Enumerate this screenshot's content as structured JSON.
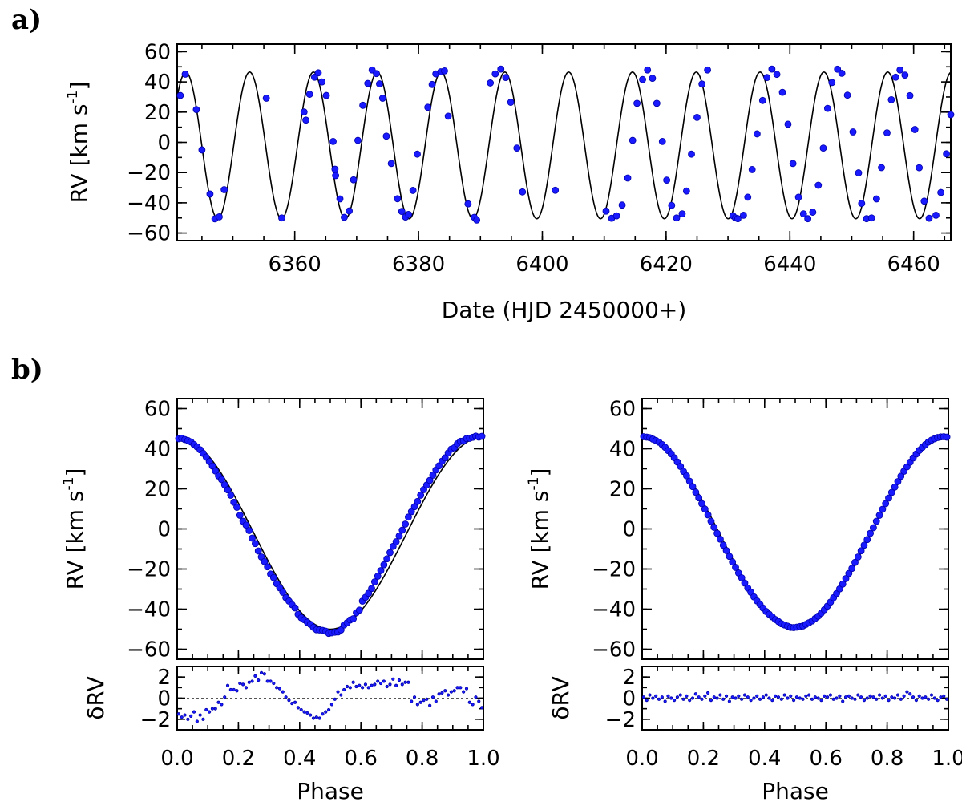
{
  "figure": {
    "panel_labels": [
      "a)",
      "b)"
    ],
    "point_color": "#1a1aff",
    "point_edge_color": "#0000aa",
    "model_color": "#000000"
  },
  "chart_data": [
    {
      "id": "a",
      "type": "scatter",
      "xlabel": "Date (HJD 2450000+)",
      "ylabel": "RV [km s-1]",
      "ylabel_parts": {
        "text": "RV [km s",
        "sup": "-1",
        "close": "]"
      },
      "xlim": [
        6341,
        6466
      ],
      "ylim": [
        -65,
        65
      ],
      "xticks": [
        6360,
        6380,
        6400,
        6420,
        6440,
        6460
      ],
      "yticks": [
        -60,
        -40,
        -20,
        0,
        20,
        40,
        60
      ],
      "model": {
        "type": "sinusoid",
        "period_days": 10.31,
        "amplitude": 48.5,
        "offset": -2.0,
        "t_peak": 6342.4
      },
      "x": [
        6341.5,
        6342.3,
        6344.1,
        6345.0,
        6346.3,
        6347.1,
        6347.8,
        6348.6,
        6355.4,
        6357.9,
        6361.5,
        6361.8,
        6362.4,
        6363.2,
        6363.8,
        6364.4,
        6365.1,
        6366.2,
        6366.5,
        6366.6,
        6367.3,
        6368.0,
        6368.8,
        6369.5,
        6370.2,
        6371.0,
        6371.8,
        6372.5,
        6373.2,
        6373.7,
        6374.2,
        6374.8,
        6375.6,
        6376.6,
        6377.3,
        6377.9,
        6378.4,
        6379.1,
        6379.8,
        6381.5,
        6382.2,
        6382.8,
        6383.6,
        6384.2,
        6384.8,
        6388.0,
        6389.0,
        6389.4,
        6391.6,
        6392.4,
        6393.3,
        6394.1,
        6394.9,
        6395.9,
        6396.8,
        6402.1,
        6410.3,
        6411.2,
        6412.0,
        6412.9,
        6413.8,
        6414.6,
        6415.3,
        6416.2,
        6417.0,
        6417.8,
        6418.5,
        6419.4,
        6420.1,
        6420.9,
        6421.7,
        6422.6,
        6423.3,
        6424.1,
        6425.0,
        6425.8,
        6426.7,
        6430.8,
        6431.2,
        6431.6,
        6432.5,
        6433.2,
        6433.9,
        6434.7,
        6435.6,
        6436.3,
        6437.1,
        6437.9,
        6438.8,
        6439.7,
        6440.5,
        6441.4,
        6442.2,
        6442.9,
        6443.7,
        6444.6,
        6445.4,
        6446.1,
        6446.8,
        6447.7,
        6448.4,
        6449.3,
        6450.2,
        6451.1,
        6451.6,
        6452.4,
        6453.2,
        6454.0,
        6454.8,
        6455.7,
        6456.4,
        6457.1,
        6457.8,
        6458.6,
        6459.4,
        6460.2,
        6460.9,
        6461.7,
        6462.5,
        6463.6,
        6464.4,
        6465.3,
        6466.0
      ],
      "y": [
        31.0,
        45.1,
        21.7,
        -5.0,
        -34.2,
        -50.6,
        -49.3,
        -31.3,
        29.2,
        -50.0,
        20.1,
        14.7,
        31.8,
        43.1,
        46.0,
        40.0,
        31.0,
        0.6,
        -17.8,
        -22.0,
        -37.4,
        -49.6,
        -45.4,
        -24.8,
        1.3,
        24.5,
        39.0,
        47.9,
        45.5,
        38.7,
        29.2,
        4.1,
        -14.0,
        -37.3,
        -45.7,
        -49.4,
        -47.7,
        -31.8,
        -7.8,
        23.2,
        38.3,
        45.3,
        46.7,
        47.3,
        17.3,
        -40.7,
        -49.6,
        -51.4,
        39.3,
        45.3,
        48.5,
        42.9,
        26.5,
        -3.8,
        -32.8,
        -31.7,
        -45.5,
        -50.2,
        -48.6,
        -41.5,
        -23.6,
        1.3,
        25.8,
        41.6,
        47.9,
        42.4,
        25.8,
        0.6,
        -25.0,
        -41.7,
        -50.0,
        -47.3,
        -32.2,
        -7.8,
        16.5,
        38.6,
        47.9,
        -48.6,
        -50.0,
        -50.5,
        -48.2,
        -36.3,
        -18.0,
        5.6,
        27.7,
        42.9,
        48.5,
        45.0,
        33.1,
        12.0,
        -14.0,
        -36.3,
        -47.3,
        -50.5,
        -46.2,
        -28.4,
        -3.8,
        22.5,
        39.6,
        48.4,
        45.7,
        31.2,
        6.9,
        -20.2,
        -40.4,
        -50.5,
        -50.0,
        -37.4,
        -16.7,
        6.3,
        28.2,
        43.1,
        47.9,
        44.5,
        30.9,
        8.5,
        -16.8,
        -38.9,
        -50.2,
        -48.2,
        -33.2,
        -7.6,
        18.3
      ]
    },
    {
      "id": "b-left",
      "type": "scatter",
      "xlabel": "Phase",
      "ylabel": "RV [km s-1]",
      "ylabel_parts": {
        "text": "RV [km s",
        "sup": "-1",
        "close": "]"
      },
      "xlim": [
        0.0,
        1.0
      ],
      "ylim": [
        -65,
        65
      ],
      "xticks": [
        0.0,
        0.2,
        0.4,
        0.6,
        0.8,
        1.0
      ],
      "xtick_labels": [
        "0.0",
        "0.2",
        "0.4",
        "0.6",
        "0.8",
        "1.0"
      ],
      "yticks": [
        -60,
        -40,
        -20,
        0,
        20,
        40,
        60
      ],
      "model": {
        "type": "cosine",
        "amplitude": 48.0,
        "offset": -2.0
      },
      "phase": [
        0.005,
        0.015,
        0.025,
        0.035,
        0.045,
        0.055,
        0.065,
        0.075,
        0.085,
        0.095,
        0.105,
        0.115,
        0.125,
        0.135,
        0.145,
        0.155,
        0.165,
        0.175,
        0.185,
        0.195,
        0.205,
        0.215,
        0.225,
        0.235,
        0.245,
        0.255,
        0.265,
        0.275,
        0.285,
        0.295,
        0.305,
        0.315,
        0.325,
        0.335,
        0.345,
        0.355,
        0.365,
        0.375,
        0.385,
        0.395,
        0.405,
        0.415,
        0.425,
        0.435,
        0.445,
        0.455,
        0.465,
        0.475,
        0.485,
        0.495,
        0.505,
        0.515,
        0.525,
        0.535,
        0.545,
        0.555,
        0.565,
        0.575,
        0.585,
        0.595,
        0.605,
        0.615,
        0.625,
        0.635,
        0.645,
        0.655,
        0.665,
        0.675,
        0.685,
        0.695,
        0.705,
        0.715,
        0.725,
        0.735,
        0.745,
        0.755,
        0.765,
        0.775,
        0.785,
        0.795,
        0.805,
        0.815,
        0.825,
        0.835,
        0.845,
        0.855,
        0.865,
        0.875,
        0.885,
        0.895,
        0.905,
        0.915,
        0.925,
        0.935,
        0.945,
        0.955,
        0.965,
        0.975,
        0.985,
        0.995
      ],
      "rv": [
        45.0,
        45.2,
        44.6,
        44.1,
        43.4,
        42.1,
        40.9,
        39.5,
        37.7,
        35.8,
        33.6,
        31.4,
        28.9,
        26.4,
        24.6,
        22.0,
        19.5,
        16.8,
        13.3,
        10.8,
        6.8,
        3.8,
        1.9,
        -0.8,
        -4.6,
        -7.3,
        -11.0,
        -14.0,
        -16.3,
        -18.9,
        -22.5,
        -24.3,
        -27.3,
        -29.4,
        -31.6,
        -34.3,
        -36.0,
        -37.8,
        -39.4,
        -42.6,
        -44.3,
        -45.3,
        -46.6,
        -47.6,
        -49.1,
        -50.3,
        -50.4,
        -50.6,
        -51.0,
        -52.1,
        -51.8,
        -51.5,
        -51.4,
        -50.4,
        -47.9,
        -46.8,
        -45.4,
        -44.8,
        -41.8,
        -40.5,
        -36.0,
        -34.1,
        -32.1,
        -29.7,
        -26.4,
        -23.6,
        -20.8,
        -17.9,
        -14.9,
        -11.8,
        -8.7,
        -6.4,
        -3.5,
        -0.6,
        2.4,
        5.9,
        8.6,
        11.1,
        13.7,
        16.8,
        19.6,
        21.9,
        24.2,
        26.8,
        29.4,
        31.5,
        33.8,
        35.5,
        37.9,
        39.8,
        40.5,
        42.5,
        43.7,
        43.9,
        45.1,
        45.2,
        45.7,
        46.3,
        45.8,
        46.2
      ],
      "residual_ylabel": "δRV",
      "residual_ylim": [
        -3,
        3
      ],
      "residual_yticks": [
        -2,
        0,
        2
      ],
      "residuals": [
        -1.5,
        -1.8,
        -1.6,
        -2.0,
        -1.7,
        -1.3,
        -2.2,
        -1.6,
        -2.0,
        -1.1,
        -1.3,
        -1.0,
        -1.0,
        -0.4,
        -0.6,
        0.1,
        1.2,
        0.8,
        0.8,
        0.7,
        1.4,
        1.3,
        1.0,
        1.5,
        1.6,
        2.1,
        1.7,
        2.4,
        2.3,
        1.6,
        1.6,
        1.4,
        1.0,
        0.9,
        0.6,
        0.1,
        -0.2,
        -0.5,
        -0.4,
        -0.9,
        -1.1,
        -1.3,
        -1.4,
        -1.6,
        -1.9,
        -1.8,
        -1.9,
        -1.5,
        -1.3,
        -1.1,
        -0.6,
        -0.1,
        0.6,
        0.3,
        0.8,
        1.1,
        1.0,
        1.5,
        1.1,
        1.2,
        1.0,
        1.3,
        1.0,
        1.2,
        1.3,
        1.6,
        1.4,
        1.6,
        1.1,
        1.3,
        1.8,
        1.2,
        1.7,
        1.3,
        1.5,
        1.5,
        -0.3,
        0.1,
        -0.6,
        -0.4,
        -0.2,
        -0.1,
        -0.7,
        0.1,
        -0.3,
        0.4,
        0.5,
        0.7,
        0.3,
        0.6,
        0.7,
        1.0,
        1.0,
        0.6,
        0.9,
        -0.4,
        -0.6,
        0.1,
        -0.3,
        -0.9
      ]
    },
    {
      "id": "b-right",
      "type": "scatter",
      "xlabel": "Phase",
      "ylabel": "RV [km s-1]",
      "ylabel_parts": {
        "text": "RV [km s",
        "sup": "-1",
        "close": "]"
      },
      "xlim": [
        0.0,
        1.0
      ],
      "ylim": [
        -65,
        65
      ],
      "xticks": [
        0.0,
        0.2,
        0.4,
        0.6,
        0.8,
        1.0
      ],
      "xtick_labels": [
        "0.0",
        "0.2",
        "0.4",
        "0.6",
        "0.8",
        "1.0"
      ],
      "yticks": [
        -60,
        -40,
        -20,
        0,
        20,
        40,
        60
      ],
      "model": {
        "type": "cosine",
        "amplitude": 47.5,
        "offset": -1.5
      },
      "phase": [
        0.005,
        0.015,
        0.025,
        0.035,
        0.045,
        0.055,
        0.065,
        0.075,
        0.085,
        0.095,
        0.105,
        0.115,
        0.125,
        0.135,
        0.145,
        0.155,
        0.165,
        0.175,
        0.185,
        0.195,
        0.205,
        0.215,
        0.225,
        0.235,
        0.245,
        0.255,
        0.265,
        0.275,
        0.285,
        0.295,
        0.305,
        0.315,
        0.325,
        0.335,
        0.345,
        0.355,
        0.365,
        0.375,
        0.385,
        0.395,
        0.405,
        0.415,
        0.425,
        0.435,
        0.445,
        0.455,
        0.465,
        0.475,
        0.485,
        0.495,
        0.505,
        0.515,
        0.525,
        0.535,
        0.545,
        0.555,
        0.565,
        0.575,
        0.585,
        0.595,
        0.605,
        0.615,
        0.625,
        0.635,
        0.645,
        0.655,
        0.665,
        0.675,
        0.685,
        0.695,
        0.705,
        0.715,
        0.725,
        0.735,
        0.745,
        0.755,
        0.765,
        0.775,
        0.785,
        0.795,
        0.805,
        0.815,
        0.825,
        0.835,
        0.845,
        0.855,
        0.865,
        0.875,
        0.885,
        0.895,
        0.905,
        0.915,
        0.925,
        0.935,
        0.945,
        0.955,
        0.965,
        0.975,
        0.985,
        0.995
      ],
      "rv": [
        46.0,
        45.8,
        45.5,
        44.8,
        44.1,
        43.3,
        42.1,
        40.7,
        39.1,
        37.5,
        35.5,
        33.4,
        31.2,
        28.7,
        26.5,
        23.8,
        21.1,
        18.3,
        15.5,
        12.6,
        9.9,
        7.0,
        3.8,
        0.8,
        -2.2,
        -5.1,
        -8.1,
        -10.8,
        -13.7,
        -16.5,
        -19.2,
        -22.0,
        -24.4,
        -27.0,
        -29.5,
        -31.6,
        -33.9,
        -35.9,
        -37.7,
        -39.5,
        -41.2,
        -42.6,
        -43.9,
        -45.2,
        -46.2,
        -47.3,
        -47.9,
        -48.5,
        -49.1,
        -49.2,
        -49.0,
        -48.7,
        -48.4,
        -47.6,
        -46.8,
        -45.9,
        -44.7,
        -43.5,
        -42.0,
        -40.3,
        -38.5,
        -36.5,
        -34.3,
        -32.2,
        -29.9,
        -27.5,
        -24.8,
        -22.2,
        -19.7,
        -16.7,
        -14.0,
        -10.9,
        -8.1,
        -5.3,
        -2.2,
        0.6,
        3.8,
        6.8,
        9.8,
        12.6,
        15.4,
        18.2,
        20.9,
        23.6,
        26.3,
        28.8,
        31.0,
        33.3,
        35.4,
        37.4,
        39.2,
        40.7,
        42.1,
        43.4,
        44.3,
        45.0,
        45.6,
        45.9,
        46.0,
        45.8
      ],
      "residual_ylabel": "δRV",
      "residual_ylim": [
        -3,
        3
      ],
      "residual_yticks": [
        -2,
        0,
        2
      ],
      "residuals": [
        0.1,
        -0.2,
        0.3,
        0.0,
        0.2,
        -0.1,
        0.1,
        -0.3,
        0.2,
        0.0,
        -0.2,
        0.1,
        0.3,
        -0.1,
        0.2,
        -0.2,
        0.0,
        0.4,
        0.1,
        -0.1,
        0.2,
        0.5,
        -0.2,
        0.1,
        0.0,
        0.3,
        -0.1,
        0.2,
        -0.3,
        0.1,
        0.0,
        0.2,
        -0.1,
        0.3,
        0.1,
        -0.2,
        0.0,
        0.2,
        -0.1,
        0.1,
        0.3,
        0.0,
        -0.2,
        0.2,
        0.1,
        -0.1,
        0.3,
        0.0,
        0.2,
        -0.2,
        0.1,
        0.0,
        -0.1,
        0.2,
        0.3,
        -0.1,
        0.1,
        0.0,
        -0.2,
        0.2,
        0.1,
        0.3,
        -0.1,
        0.0,
        0.2,
        -0.3,
        0.1,
        0.2,
        0.0,
        -0.1,
        0.3,
        0.1,
        -0.2,
        0.0,
        0.2,
        0.1,
        -0.1,
        0.3,
        0.0,
        0.2,
        -0.2,
        0.1,
        0.0,
        0.3,
        -0.1,
        0.2,
        0.6,
        0.4,
        0.1,
        -0.2,
        0.2,
        0.0,
        0.1,
        -0.1,
        0.3,
        0.0,
        -0.2,
        0.1,
        0.2,
        -0.1
      ]
    }
  ]
}
